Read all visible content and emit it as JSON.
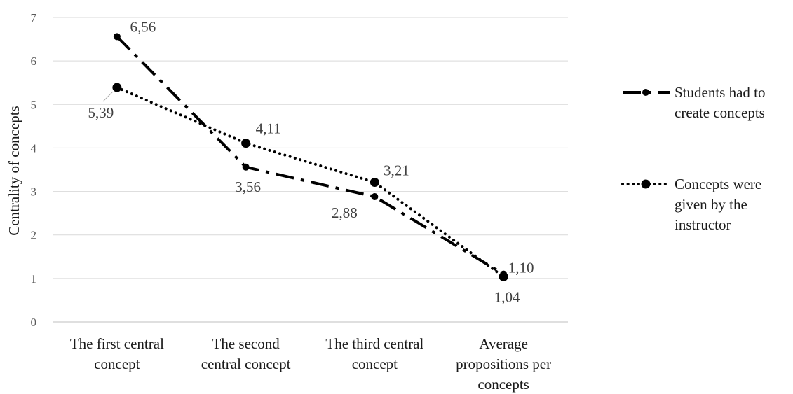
{
  "chart_data": {
    "type": "line",
    "title": "",
    "xlabel": "",
    "ylabel": "Centrality of concepts",
    "ylim": [
      0,
      7
    ],
    "yticks": [
      "0",
      "1",
      "2",
      "3",
      "4",
      "5",
      "6",
      "7"
    ],
    "grid": true,
    "legend_position": "right",
    "categories": [
      [
        "The first central",
        "concept"
      ],
      [
        "The second",
        "central concept"
      ],
      [
        "The third central",
        "concept"
      ],
      [
        "Average",
        "propositions per",
        "concepts"
      ]
    ],
    "series": [
      {
        "name": [
          "Students had to",
          "create concepts"
        ],
        "style": "dash-dot",
        "color": "#000000",
        "values": [
          6.56,
          3.56,
          2.88,
          1.1
        ],
        "labels": [
          "6,56",
          "3,56",
          "2,88",
          "1,10"
        ]
      },
      {
        "name": [
          "Concepts were",
          "given by the",
          "instructor"
        ],
        "style": "dotted",
        "color": "#000000",
        "values": [
          5.39,
          4.11,
          3.21,
          1.04
        ],
        "labels": [
          "5,39",
          "4,11",
          "3,21",
          "1,04"
        ]
      }
    ]
  }
}
